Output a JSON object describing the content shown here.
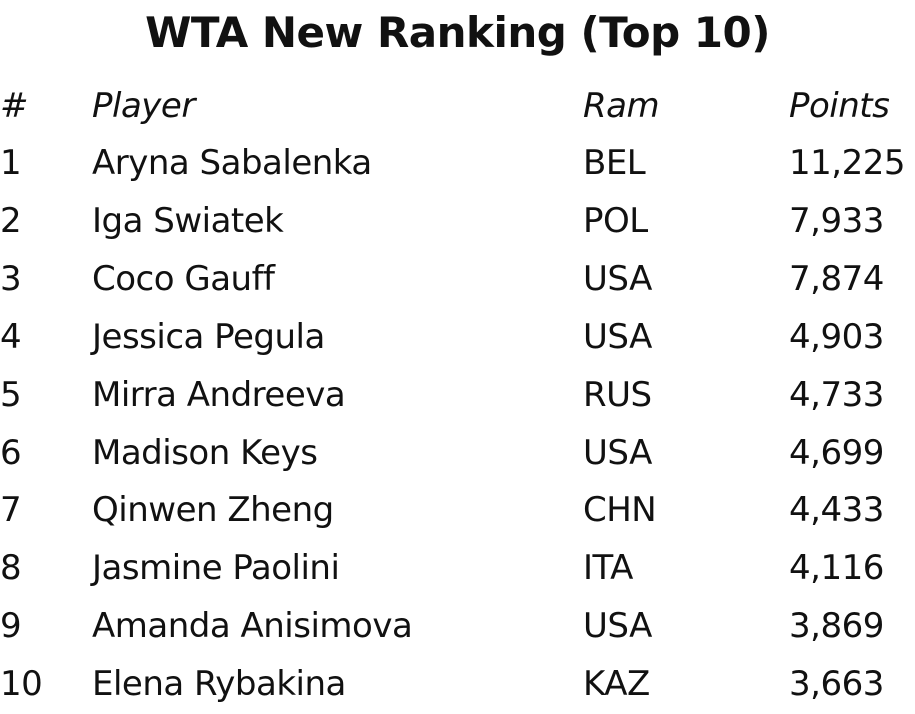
{
  "title": "WTA New Ranking (Top 10)",
  "table": {
    "header": [
      "#",
      "Player",
      "Ram",
      "Points"
    ],
    "rows": [
      [
        "1",
        "Aryna Sabalenka",
        "BEL",
        "11,225"
      ],
      [
        "2",
        "Iga Swiatek",
        "POL",
        "7,933"
      ],
      [
        "3",
        "Coco Gauff",
        "USA",
        "7,874"
      ],
      [
        "4",
        "Jessica Pegula",
        "USA",
        "4,903"
      ],
      [
        "5",
        "Mirra Andreeva",
        "RUS",
        "4,733"
      ],
      [
        "6",
        "Madison Keys",
        "USA",
        "4,699"
      ],
      [
        "7",
        "Qinwen Zheng",
        "CHN",
        "4,433"
      ],
      [
        "8",
        "Jasmine Paolini",
        "ITA",
        "4,116"
      ],
      [
        "9",
        "Amanda Anisimova",
        "USA",
        "3,869"
      ],
      [
        "10",
        "Elena Rybakina",
        "KAZ",
        "3,663"
      ]
    ]
  }
}
